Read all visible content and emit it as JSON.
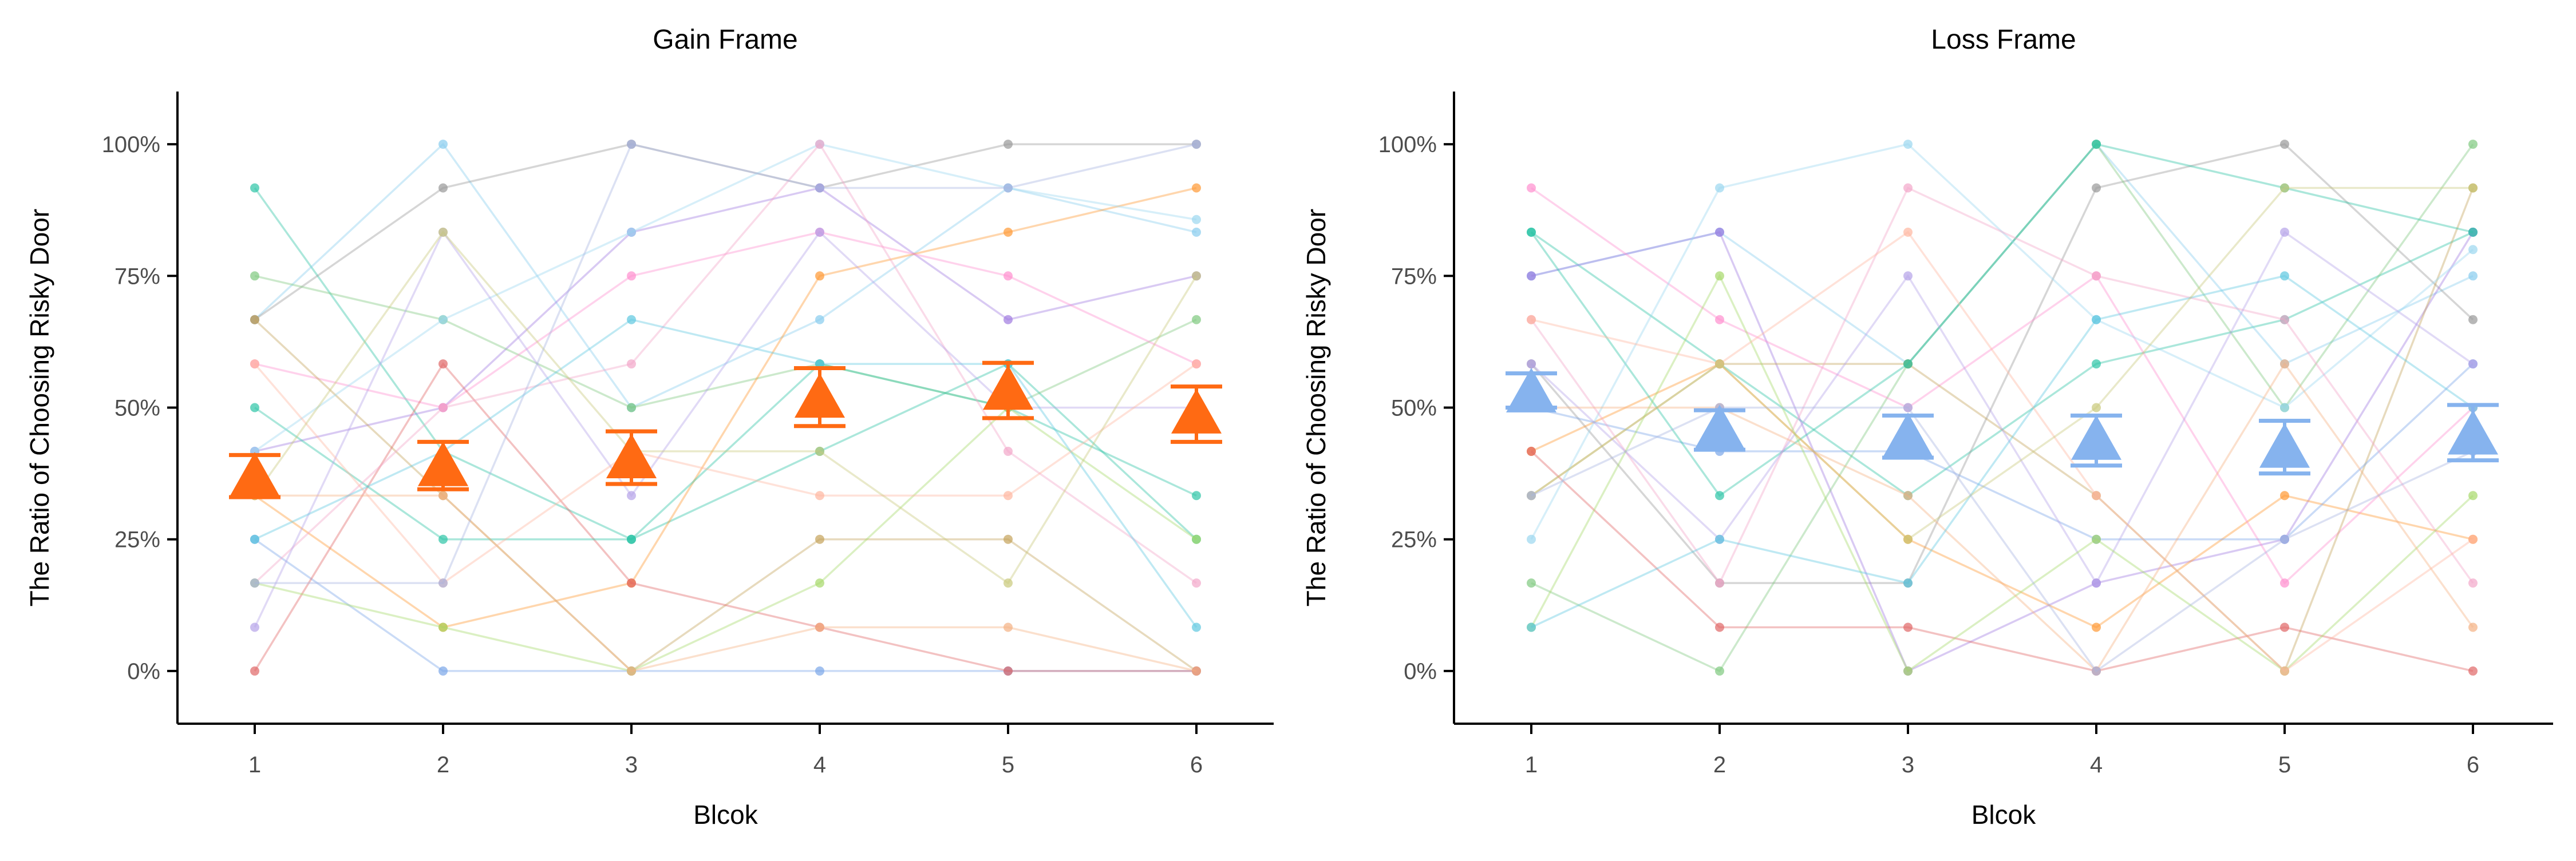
{
  "chart_data": [
    {
      "type": "line",
      "title": "Gain Frame",
      "xlabel": "Blcok",
      "ylabel": "The Ratio of Choosing Risky Door",
      "categories": [
        "1",
        "2",
        "3",
        "4",
        "5",
        "6"
      ],
      "y_tick_labels": [
        "0%",
        "25%",
        "50%",
        "75%",
        "100%"
      ],
      "y_ticks": [
        0,
        25,
        50,
        75,
        100
      ],
      "ylim": [
        -10,
        110
      ],
      "grid": false,
      "mean_color": "#ff6a13",
      "mean": [
        37,
        39,
        40.5,
        52,
        53.5,
        49
      ],
      "error_lower": [
        33,
        34.5,
        35.5,
        46.5,
        48,
        43.5
      ],
      "error_upper": [
        41,
        43.5,
        45.5,
        57.5,
        58.5,
        54
      ],
      "participants": [
        {
          "color": "#2ec4a6",
          "values": [
            91.7,
            41.7,
            25,
            41.7,
            58.3,
            25
          ]
        },
        {
          "color": "#88ccee",
          "values": [
            66.7,
            100,
            50,
            66.7,
            91.7,
            83.3
          ]
        },
        {
          "color": "#999999",
          "values": [
            66.7,
            91.7,
            100,
            91.7,
            100,
            100
          ]
        },
        {
          "color": "#a07ae0",
          "values": [
            41.7,
            50,
            83.3,
            91.7,
            66.7,
            75
          ]
        },
        {
          "color": "#7fc97f",
          "values": [
            75,
            66.7,
            50,
            58.3,
            50,
            66.7
          ]
        },
        {
          "color": "#ff9933",
          "values": [
            33.3,
            8.3,
            16.7,
            75,
            83.3,
            91.7
          ]
        },
        {
          "color": "#ff8fcf",
          "values": [
            58.3,
            50,
            75,
            83.3,
            75,
            58.3
          ]
        },
        {
          "color": "#c4a35a",
          "values": [
            66.7,
            33.3,
            0,
            25,
            25,
            0
          ]
        },
        {
          "color": "#7aa6e8",
          "values": [
            25,
            0,
            0,
            0,
            0,
            0
          ]
        },
        {
          "color": "#e06666",
          "values": [
            0,
            58.3,
            16.7,
            8.3,
            0,
            0
          ]
        },
        {
          "color": "#2ec4a6",
          "values": [
            50,
            25,
            25,
            58.3,
            50,
            33.3
          ]
        },
        {
          "color": "#9bd7ef",
          "values": [
            41.7,
            66.7,
            83.3,
            100,
            91.7,
            85.7
          ]
        },
        {
          "color": "#f2a6c9",
          "values": [
            16.7,
            50,
            58.3,
            100,
            41.7,
            16.7
          ]
        },
        {
          "color": "#b5a3e8",
          "values": [
            8.3,
            83.3,
            33.3,
            83.3,
            50,
            50
          ]
        },
        {
          "color": "#a6d96a",
          "values": [
            16.7,
            8.3,
            0,
            16.7,
            50,
            25
          ]
        },
        {
          "color": "#f4b183",
          "values": [
            33.3,
            33.3,
            0,
            8.3,
            8.3,
            0
          ]
        },
        {
          "color": "#5ec8e0",
          "values": [
            25,
            41.7,
            66.7,
            58.3,
            58.3,
            8.3
          ]
        },
        {
          "color": "#ffb7a0",
          "values": [
            58.3,
            16.7,
            41.7,
            33.3,
            33.3,
            58.3
          ]
        },
        {
          "color": "#c9c97a",
          "values": [
            33.3,
            83.3,
            41.7,
            41.7,
            16.7,
            75
          ]
        },
        {
          "color": "#a8b4e0",
          "values": [
            16.7,
            16.7,
            100,
            91.7,
            91.7,
            100
          ]
        }
      ]
    },
    {
      "type": "line",
      "title": "Loss Frame",
      "xlabel": "Blcok",
      "ylabel": "The Ratio of Choosing Risky Door",
      "categories": [
        "1",
        "2",
        "3",
        "4",
        "5",
        "6"
      ],
      "y_tick_labels": [
        "0%",
        "25%",
        "50%",
        "75%",
        "100%"
      ],
      "y_ticks": [
        0,
        25,
        50,
        75,
        100
      ],
      "ylim": [
        -10,
        110
      ],
      "grid": false,
      "mean_color": "#86b3ee",
      "mean": [
        53,
        46,
        44.5,
        44,
        42.5,
        45
      ],
      "error_lower": [
        50,
        42,
        40.5,
        39,
        37.5,
        40
      ],
      "error_upper": [
        56.5,
        49.5,
        48.5,
        48.5,
        47.5,
        50.5
      ],
      "participants": [
        {
          "color": "#2ec4a6",
          "values": [
            83.3,
            58.3,
            33.3,
            58.3,
            66.7,
            83.3
          ]
        },
        {
          "color": "#88ccee",
          "values": [
            75,
            83.3,
            58.3,
            100,
            58.3,
            75
          ]
        },
        {
          "color": "#999999",
          "values": [
            58.3,
            16.7,
            16.7,
            91.7,
            100,
            66.7
          ]
        },
        {
          "color": "#a07ae0",
          "values": [
            75,
            83.3,
            0,
            16.7,
            25,
            83.3
          ]
        },
        {
          "color": "#7fc97f",
          "values": [
            16.7,
            0,
            58.3,
            100,
            50,
            100
          ]
        },
        {
          "color": "#ff9933",
          "values": [
            41.7,
            58.3,
            25,
            8.3,
            33.3,
            25
          ]
        },
        {
          "color": "#ff8fcf",
          "values": [
            91.7,
            66.7,
            50,
            75,
            16.7,
            50
          ]
        },
        {
          "color": "#c4a35a",
          "values": [
            33.3,
            58.3,
            58.3,
            33.3,
            0,
            91.7
          ]
        },
        {
          "color": "#7aa6e8",
          "values": [
            50,
            41.7,
            41.7,
            25,
            25,
            58.3
          ]
        },
        {
          "color": "#e06666",
          "values": [
            41.7,
            8.3,
            8.3,
            0,
            8.3,
            0
          ]
        },
        {
          "color": "#2ec4a6",
          "values": [
            83.3,
            33.3,
            58.3,
            100,
            91.7,
            83.3
          ]
        },
        {
          "color": "#9bd7ef",
          "values": [
            25,
            91.7,
            100,
            66.7,
            50,
            80
          ]
        },
        {
          "color": "#f2a6c9",
          "values": [
            66.7,
            16.7,
            91.7,
            75,
            66.7,
            16.7
          ]
        },
        {
          "color": "#b5a3e8",
          "values": [
            58.3,
            25,
            75,
            16.7,
            83.3,
            58.3
          ]
        },
        {
          "color": "#a6d96a",
          "values": [
            8.3,
            75,
            0,
            25,
            0,
            33.3
          ]
        },
        {
          "color": "#f4b183",
          "values": [
            50,
            50,
            33.3,
            0,
            58.3,
            8.3
          ]
        },
        {
          "color": "#5ec8e0",
          "values": [
            8.3,
            25,
            16.7,
            66.7,
            75,
            50
          ]
        },
        {
          "color": "#ffb7a0",
          "values": [
            66.7,
            58.3,
            83.3,
            33.3,
            0,
            25
          ]
        },
        {
          "color": "#c9c97a",
          "values": [
            33.3,
            58.3,
            25,
            50,
            91.7,
            91.7
          ]
        },
        {
          "color": "#a8b4e0",
          "values": [
            33.3,
            50,
            50,
            0,
            25,
            41.7
          ]
        }
      ]
    }
  ]
}
